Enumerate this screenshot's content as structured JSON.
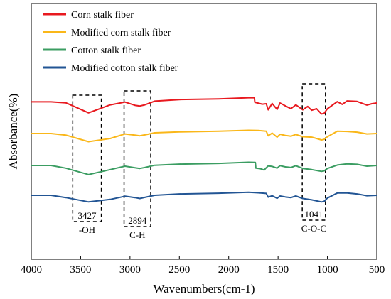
{
  "chart_data": {
    "type": "line",
    "xlabel": "Wavenumbers(cm-1)",
    "ylabel": "Absorbance(%)",
    "xlim": [
      4000,
      500
    ],
    "x_reversed": true,
    "xticks": [
      4000,
      3500,
      3000,
      2500,
      2000,
      1500,
      1000,
      500
    ],
    "y_ticks_shown": false,
    "grid": false,
    "legend_position": "top-left",
    "series": [
      {
        "name": "Corn stalk fiber",
        "color": "#e8191f",
        "points": [
          [
            4000,
            0.5
          ],
          [
            3800,
            0.5
          ],
          [
            3650,
            0.1
          ],
          [
            3420,
            -4.3
          ],
          [
            3200,
            -0.8
          ],
          [
            3050,
            0.4
          ],
          [
            2950,
            -1.0
          ],
          [
            2900,
            -1.3
          ],
          [
            2850,
            -0.8
          ],
          [
            2750,
            0.8
          ],
          [
            2500,
            1.5
          ],
          [
            2100,
            1.8
          ],
          [
            1800,
            2.3
          ],
          [
            1740,
            2.3
          ],
          [
            1735,
            0.3
          ],
          [
            1660,
            -0.5
          ],
          [
            1620,
            -0.3
          ],
          [
            1600,
            -3.0
          ],
          [
            1560,
            -0.2
          ],
          [
            1510,
            -2.8
          ],
          [
            1480,
            0.0
          ],
          [
            1430,
            -1.2
          ],
          [
            1370,
            -2.5
          ],
          [
            1320,
            -0.8
          ],
          [
            1250,
            -3.0
          ],
          [
            1200,
            -1.5
          ],
          [
            1160,
            -3.2
          ],
          [
            1110,
            -2.5
          ],
          [
            1060,
            -4.8
          ],
          [
            1035,
            -4.6
          ],
          [
            1000,
            -2.5
          ],
          [
            900,
            0.6
          ],
          [
            850,
            -0.6
          ],
          [
            800,
            0.9
          ],
          [
            700,
            0.7
          ],
          [
            600,
            -0.9
          ],
          [
            550,
            -0.3
          ],
          [
            500,
            0.0
          ]
        ]
      },
      {
        "name": "Modified corn stalk fiber",
        "color": "#fab719",
        "points": [
          [
            4000,
            0.0
          ],
          [
            3800,
            0.0
          ],
          [
            3650,
            -0.7
          ],
          [
            3420,
            -3.6
          ],
          [
            3200,
            -2.2
          ],
          [
            3050,
            -0.2
          ],
          [
            2950,
            -0.7
          ],
          [
            2900,
            -1.0
          ],
          [
            2850,
            -0.6
          ],
          [
            2750,
            0.3
          ],
          [
            2500,
            0.7
          ],
          [
            2100,
            1.0
          ],
          [
            1800,
            1.4
          ],
          [
            1700,
            1.3
          ],
          [
            1620,
            1.0
          ],
          [
            1600,
            -1.0
          ],
          [
            1560,
            0.2
          ],
          [
            1510,
            -1.6
          ],
          [
            1480,
            -0.3
          ],
          [
            1430,
            -0.8
          ],
          [
            1370,
            -1.2
          ],
          [
            1320,
            -0.4
          ],
          [
            1250,
            -1.4
          ],
          [
            1160,
            -1.6
          ],
          [
            1060,
            -2.8
          ],
          [
            1035,
            -2.6
          ],
          [
            1000,
            -1.4
          ],
          [
            900,
            1.0
          ],
          [
            800,
            0.9
          ],
          [
            700,
            0.6
          ],
          [
            600,
            -0.2
          ],
          [
            500,
            0.0
          ]
        ]
      },
      {
        "name": "Cotton stalk fiber",
        "color": "#3b9d62",
        "points": [
          [
            4000,
            0.0
          ],
          [
            3800,
            0.0
          ],
          [
            3650,
            -1.2
          ],
          [
            3420,
            -4.0
          ],
          [
            3200,
            -1.8
          ],
          [
            3050,
            -0.3
          ],
          [
            2950,
            -1.0
          ],
          [
            2900,
            -1.3
          ],
          [
            2850,
            -0.9
          ],
          [
            2750,
            0.1
          ],
          [
            2500,
            0.6
          ],
          [
            2100,
            0.9
          ],
          [
            1800,
            1.4
          ],
          [
            1730,
            1.3
          ],
          [
            1725,
            -1.2
          ],
          [
            1680,
            -1.4
          ],
          [
            1640,
            -2.0
          ],
          [
            1620,
            -1.0
          ],
          [
            1600,
            -0.2
          ],
          [
            1560,
            -0.4
          ],
          [
            1510,
            -1.2
          ],
          [
            1480,
            -0.1
          ],
          [
            1430,
            -0.6
          ],
          [
            1370,
            -0.9
          ],
          [
            1320,
            -0.1
          ],
          [
            1250,
            -1.3
          ],
          [
            1160,
            -1.8
          ],
          [
            1060,
            -2.6
          ],
          [
            1035,
            -2.4
          ],
          [
            1000,
            -1.3
          ],
          [
            900,
            0.2
          ],
          [
            800,
            0.7
          ],
          [
            700,
            0.5
          ],
          [
            600,
            -0.3
          ],
          [
            500,
            0.0
          ]
        ]
      },
      {
        "name": "Modified cotton stalk fiber",
        "color": "#225594",
        "points": [
          [
            4000,
            0.0
          ],
          [
            3800,
            0.0
          ],
          [
            3650,
            -1.0
          ],
          [
            3420,
            -2.9
          ],
          [
            3200,
            -1.8
          ],
          [
            3050,
            -0.4
          ],
          [
            2950,
            -1.0
          ],
          [
            2900,
            -1.4
          ],
          [
            2850,
            -0.9
          ],
          [
            2750,
            0.0
          ],
          [
            2500,
            0.6
          ],
          [
            2100,
            0.9
          ],
          [
            1800,
            1.3
          ],
          [
            1700,
            1.1
          ],
          [
            1620,
            0.8
          ],
          [
            1600,
            -0.8
          ],
          [
            1560,
            -0.2
          ],
          [
            1510,
            -1.3
          ],
          [
            1480,
            -0.3
          ],
          [
            1430,
            -0.7
          ],
          [
            1370,
            -1.0
          ],
          [
            1320,
            -0.3
          ],
          [
            1250,
            -1.4
          ],
          [
            1160,
            -2.0
          ],
          [
            1060,
            -2.9
          ],
          [
            1035,
            -2.7
          ],
          [
            1000,
            -1.2
          ],
          [
            900,
            1.0
          ],
          [
            800,
            1.0
          ],
          [
            700,
            0.6
          ],
          [
            600,
            -0.2
          ],
          [
            500,
            0.0
          ]
        ]
      }
    ],
    "annotations": [
      {
        "peak_label": "3427",
        "group_label": "-OH",
        "x_range": [
          3580,
          3290
        ]
      },
      {
        "peak_label": "2894",
        "group_label": "C-H",
        "x_range": [
          3060,
          2790
        ]
      },
      {
        "peak_label": "1041",
        "group_label": "C-O-C",
        "x_range": [
          1255,
          1020
        ]
      }
    ]
  }
}
